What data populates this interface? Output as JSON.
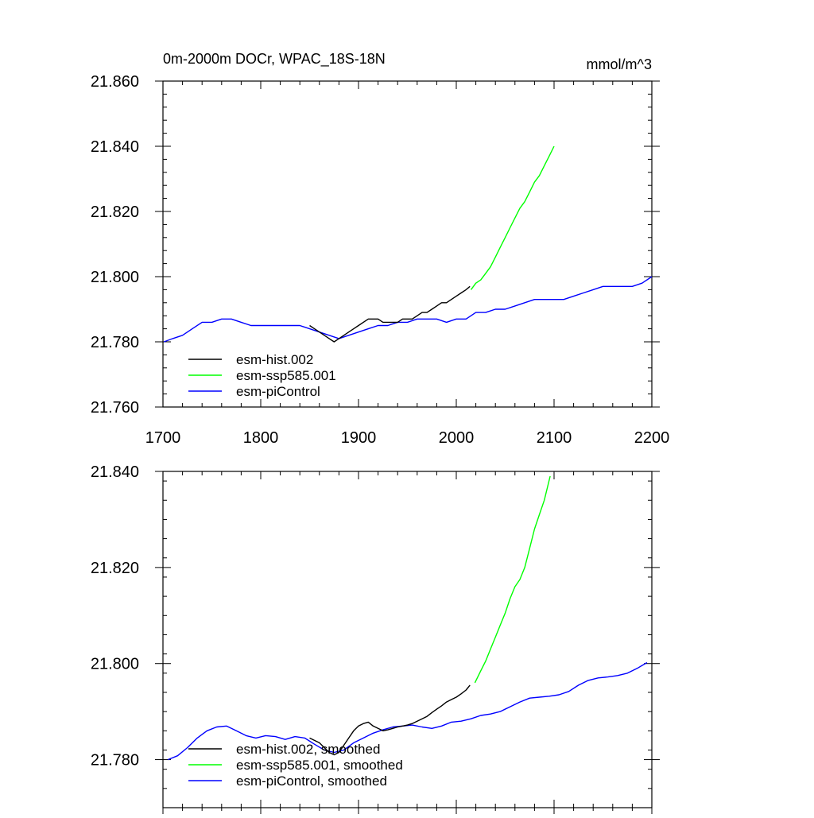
{
  "chart_data": [
    {
      "type": "line",
      "title": "0m-2000m DOCr, WPAC_18S-18N",
      "units": "mmol/m^3",
      "xlim": [
        1700,
        2200
      ],
      "ylim": [
        21.76,
        21.86
      ],
      "x_ticks": [
        "1700",
        "1800",
        "1900",
        "2000",
        "2100",
        "2200"
      ],
      "y_ticks": [
        "21.760",
        "21.780",
        "21.800",
        "21.820",
        "21.840",
        "21.860"
      ],
      "grid": false,
      "legend_position": "bottom-left",
      "series": [
        {
          "name": "esm-hist.002",
          "color": "#000000",
          "x": [
            1850,
            1855,
            1860,
            1865,
            1870,
            1875,
            1880,
            1885,
            1890,
            1895,
            1900,
            1905,
            1910,
            1915,
            1920,
            1925,
            1930,
            1935,
            1940,
            1945,
            1950,
            1955,
            1960,
            1965,
            1970,
            1975,
            1980,
            1985,
            1990,
            1995,
            2000,
            2005,
            2010,
            2014
          ],
          "y": [
            21.785,
            21.784,
            21.783,
            21.782,
            21.781,
            21.78,
            21.781,
            21.782,
            21.783,
            21.784,
            21.785,
            21.786,
            21.787,
            21.787,
            21.787,
            21.786,
            21.786,
            21.786,
            21.786,
            21.787,
            21.787,
            21.787,
            21.788,
            21.789,
            21.789,
            21.79,
            21.791,
            21.792,
            21.792,
            21.793,
            21.794,
            21.795,
            21.796,
            21.797
          ]
        },
        {
          "name": "esm-ssp585.001",
          "color": "#00ff00",
          "x": [
            2015,
            2020,
            2025,
            2030,
            2035,
            2040,
            2045,
            2050,
            2055,
            2060,
            2065,
            2070,
            2075,
            2080,
            2085,
            2090,
            2095,
            2100
          ],
          "y": [
            21.796,
            21.798,
            21.799,
            21.801,
            21.803,
            21.806,
            21.809,
            21.812,
            21.815,
            21.818,
            21.821,
            21.823,
            21.826,
            21.829,
            21.831,
            21.834,
            21.837,
            21.84
          ]
        },
        {
          "name": "esm-piControl",
          "color": "#0000ff",
          "x": [
            1701,
            1710,
            1720,
            1730,
            1740,
            1750,
            1760,
            1770,
            1780,
            1790,
            1800,
            1810,
            1820,
            1830,
            1840,
            1850,
            1860,
            1870,
            1880,
            1890,
            1900,
            1910,
            1920,
            1930,
            1940,
            1950,
            1960,
            1970,
            1980,
            1990,
            2000,
            2010,
            2020,
            2030,
            2040,
            2050,
            2060,
            2070,
            2080,
            2090,
            2100,
            2110,
            2120,
            2130,
            2140,
            2150,
            2160,
            2170,
            2180,
            2190,
            2200
          ],
          "y": [
            21.78,
            21.781,
            21.782,
            21.784,
            21.786,
            21.786,
            21.787,
            21.787,
            21.786,
            21.785,
            21.785,
            21.785,
            21.785,
            21.785,
            21.785,
            21.784,
            21.783,
            21.782,
            21.781,
            21.782,
            21.783,
            21.784,
            21.785,
            21.785,
            21.786,
            21.786,
            21.787,
            21.787,
            21.787,
            21.786,
            21.787,
            21.787,
            21.789,
            21.789,
            21.79,
            21.79,
            21.791,
            21.792,
            21.793,
            21.793,
            21.793,
            21.793,
            21.794,
            21.795,
            21.796,
            21.797,
            21.797,
            21.797,
            21.797,
            21.798,
            21.8
          ]
        }
      ]
    },
    {
      "type": "line",
      "title": "",
      "xlim": [
        1700,
        2200
      ],
      "ylim": [
        21.77,
        21.84
      ],
      "x_ticks": [],
      "y_ticks": [
        "21.780",
        "21.800",
        "21.820",
        "21.840"
      ],
      "grid": false,
      "legend_position": "bottom-left",
      "series": [
        {
          "name": "esm-hist.002, smoothed",
          "color": "#000000",
          "x": [
            1850,
            1855,
            1860,
            1865,
            1870,
            1875,
            1880,
            1885,
            1890,
            1895,
            1900,
            1905,
            1910,
            1915,
            1920,
            1925,
            1930,
            1935,
            1940,
            1945,
            1950,
            1955,
            1960,
            1965,
            1970,
            1975,
            1980,
            1985,
            1990,
            1995,
            2000,
            2005,
            2010,
            2014
          ],
          "y": [
            21.7845,
            21.784,
            21.7835,
            21.7825,
            21.7815,
            21.781,
            21.7815,
            21.783,
            21.7845,
            21.786,
            21.787,
            21.7875,
            21.7878,
            21.787,
            21.7865,
            21.786,
            21.7862,
            21.7865,
            21.7868,
            21.787,
            21.7872,
            21.7875,
            21.788,
            21.7885,
            21.789,
            21.7898,
            21.7905,
            21.7912,
            21.792,
            21.7925,
            21.793,
            21.7937,
            21.7945,
            21.7955
          ]
        },
        {
          "name": "esm-ssp585.001, smoothed",
          "color": "#00ff00",
          "x": [
            2019,
            2025,
            2030,
            2035,
            2040,
            2045,
            2050,
            2055,
            2060,
            2065,
            2070,
            2075,
            2080,
            2085,
            2090,
            2096
          ],
          "y": [
            21.796,
            21.7985,
            21.8005,
            21.803,
            21.8055,
            21.808,
            21.8105,
            21.8135,
            21.816,
            21.8175,
            21.82,
            21.824,
            21.828,
            21.831,
            21.834,
            21.839
          ]
        },
        {
          "name": "esm-piControl, smoothed",
          "color": "#0000ff",
          "x": [
            1705,
            1715,
            1725,
            1735,
            1745,
            1755,
            1765,
            1775,
            1785,
            1795,
            1805,
            1815,
            1825,
            1835,
            1845,
            1855,
            1865,
            1875,
            1885,
            1895,
            1905,
            1915,
            1925,
            1935,
            1945,
            1955,
            1965,
            1975,
            1985,
            1995,
            2005,
            2015,
            2025,
            2035,
            2045,
            2055,
            2065,
            2075,
            2085,
            2095,
            2105,
            2115,
            2125,
            2135,
            2145,
            2155,
            2165,
            2175,
            2185,
            2195
          ],
          "y": [
            21.78,
            21.7808,
            21.7825,
            21.7845,
            21.786,
            21.7868,
            21.787,
            21.786,
            21.785,
            21.7845,
            21.785,
            21.7848,
            21.7842,
            21.7848,
            21.7845,
            21.7832,
            21.782,
            21.7815,
            21.782,
            21.7835,
            21.7845,
            21.7855,
            21.7862,
            21.7868,
            21.787,
            21.7872,
            21.7868,
            21.7865,
            21.787,
            21.7878,
            21.788,
            21.7885,
            21.7892,
            21.7895,
            21.79,
            21.791,
            21.792,
            21.7928,
            21.793,
            21.7932,
            21.7935,
            21.7942,
            21.7955,
            21.7965,
            21.797,
            21.7972,
            21.7975,
            21.798,
            21.799,
            21.8002
          ]
        }
      ]
    }
  ]
}
